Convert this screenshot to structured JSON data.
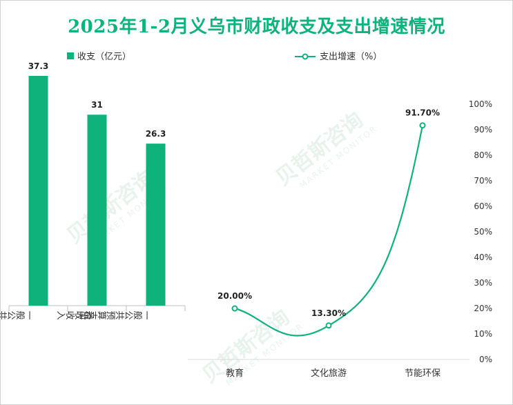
{
  "title": "2025年1-2月义乌市财政收支及支出增速情况",
  "colors": {
    "accent": "#0eb27a",
    "title": "#0eb27a"
  },
  "chart_data": [
    {
      "type": "bar",
      "legend": "收支（亿元）",
      "categories": [
        "一般公共预算收入",
        "税收收入",
        "一般公共预算支出"
      ],
      "values": [
        37.3,
        31,
        26.3
      ],
      "value_labels": [
        "37.3",
        "31",
        "26.3"
      ],
      "ylim": [
        0,
        40
      ],
      "color": "#0eb27a"
    },
    {
      "type": "line",
      "legend": "支出增速（%）",
      "categories": [
        "教育",
        "文化旅游",
        "节能环保"
      ],
      "values": [
        20.0,
        13.3,
        91.7
      ],
      "value_labels": [
        "20.00%",
        "13.30%",
        "91.70%"
      ],
      "ylim": [
        0,
        100
      ],
      "yticks": [
        "0%",
        "10%",
        "20%",
        "30%",
        "40%",
        "50%",
        "60%",
        "70%",
        "80%",
        "90%",
        "100%"
      ],
      "color": "#0eb27a"
    }
  ]
}
